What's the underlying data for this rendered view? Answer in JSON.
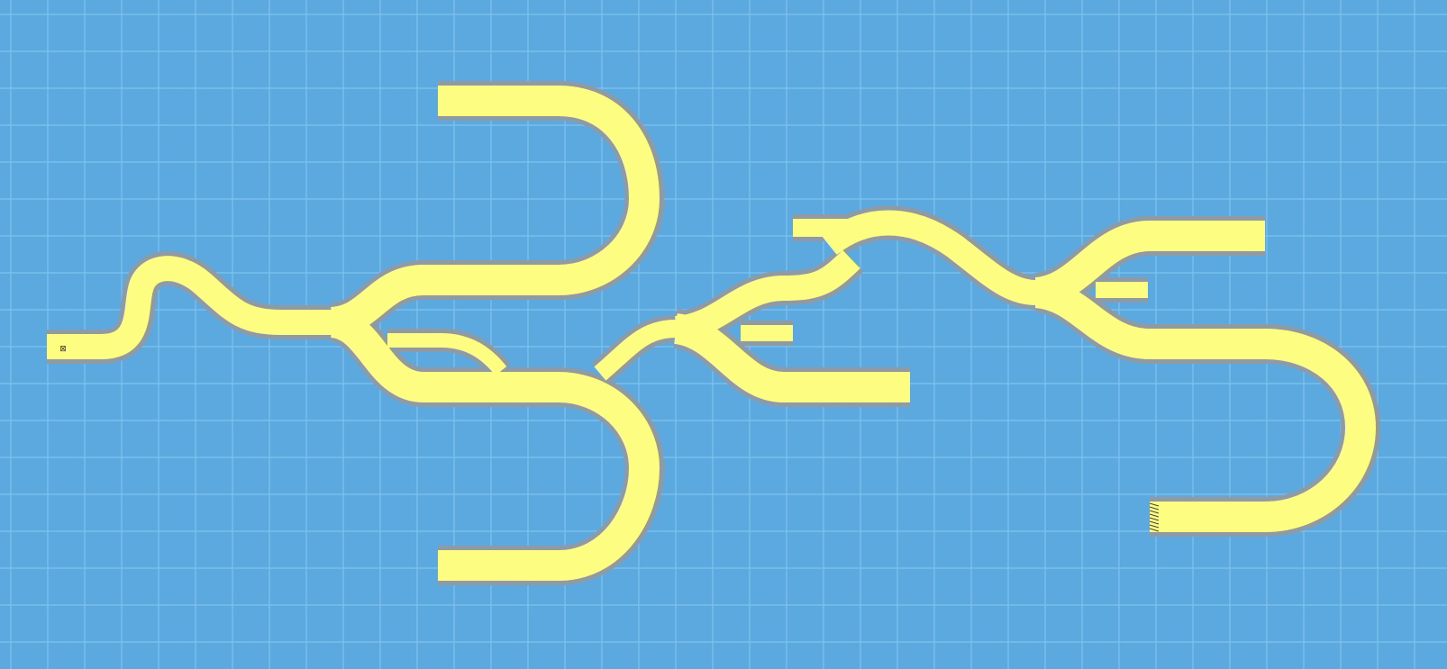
{
  "canvas": {
    "background_color": "#5ca9e0",
    "grid_line_color": "#7cc3ee",
    "grid": true
  },
  "trace": {
    "fill_color": "#fdfd82",
    "outline_color": "#8f9aa4"
  },
  "labels": {
    "start_marker": "⊠"
  }
}
